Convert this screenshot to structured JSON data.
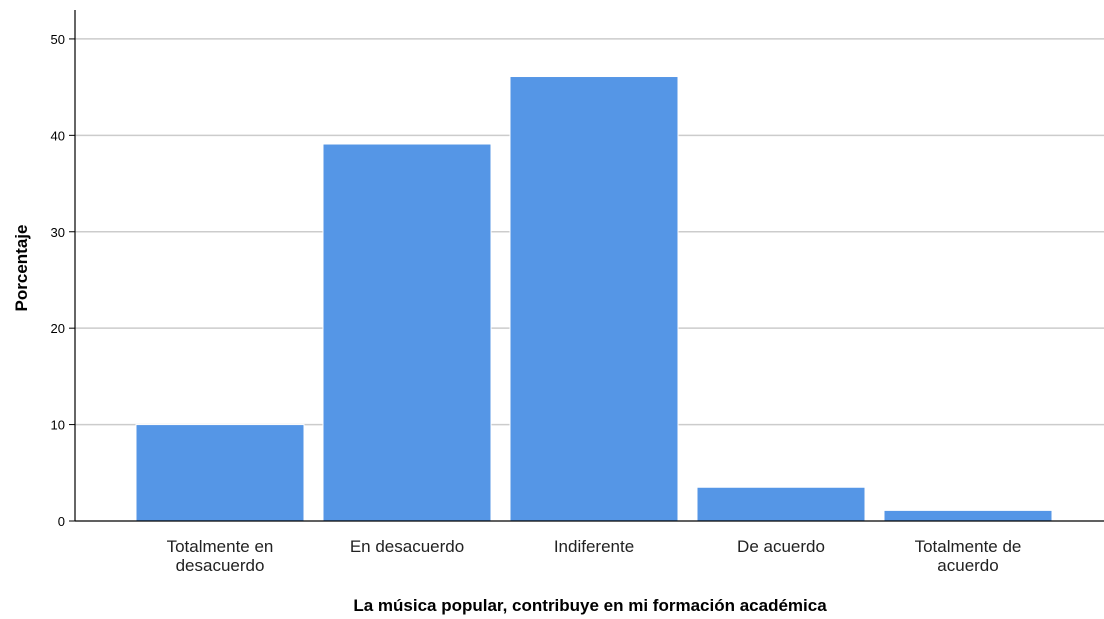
{
  "chart_data": {
    "type": "bar",
    "title": "",
    "xlabel": "La música popular, contribuye en mi formación académica",
    "ylabel": "Porcentaje",
    "categories": [
      [
        "Totalmente en",
        "desacuerdo"
      ],
      [
        "En desacuerdo"
      ],
      [
        "Indiferente"
      ],
      [
        "De acuerdo"
      ],
      [
        "Totalmente de",
        "acuerdo"
      ]
    ],
    "values": [
      10.0,
      39.1,
      46.1,
      3.5,
      1.1
    ],
    "ylim": [
      0,
      53
    ],
    "yticks": [
      0,
      10,
      20,
      30,
      40,
      50
    ],
    "grid": true,
    "bar_color": "#5596E6",
    "grid_color": "#cccccc",
    "axis_color": "#000000"
  }
}
